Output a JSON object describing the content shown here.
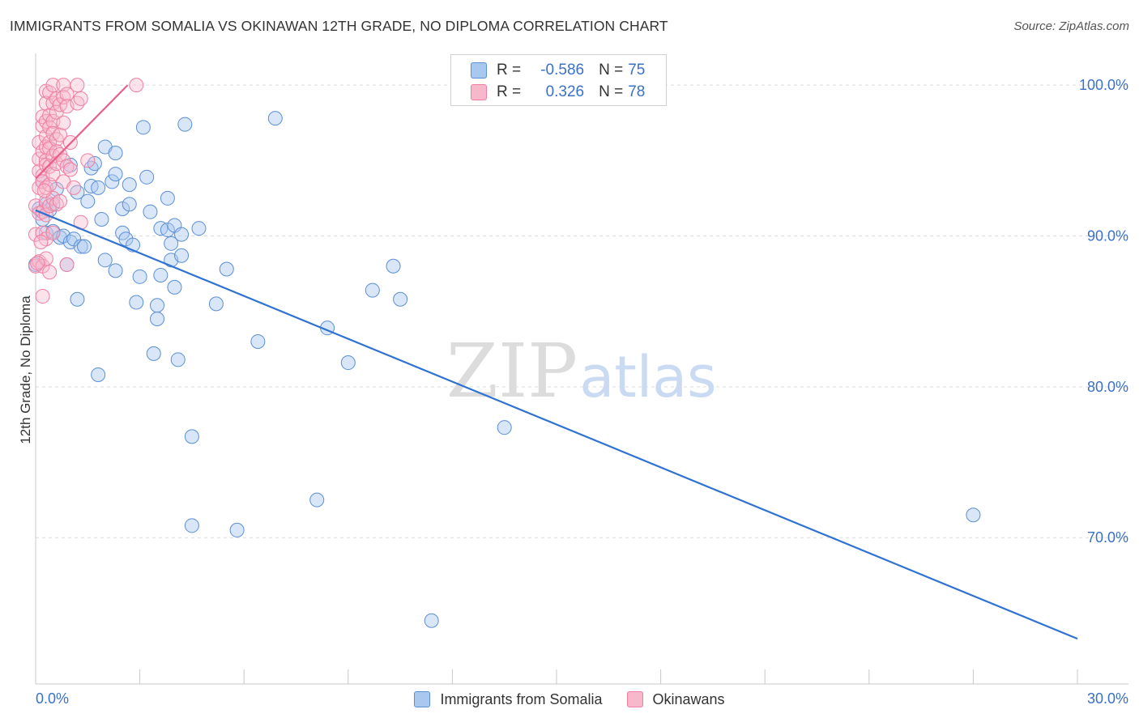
{
  "title": "IMMIGRANTS FROM SOMALIA VS OKINAWAN 12TH GRADE, NO DIPLOMA CORRELATION CHART",
  "source": "Source: ZipAtlas.com",
  "watermark": {
    "zip": "ZIP",
    "atlas": "atlas"
  },
  "legend_top": {
    "rows": [
      {
        "r_label": "R =",
        "r_value": "-0.586",
        "n_label": "N =",
        "n_value": "75"
      },
      {
        "r_label": "R =",
        "r_value": "0.326",
        "n_label": "N =",
        "n_value": "78"
      }
    ]
  },
  "legend_bottom": {
    "series1": "Immigrants from Somalia",
    "series2": "Okinawans"
  },
  "colors": {
    "blue_fill": "#a9c8ef",
    "blue_stroke": "#5b8fd6",
    "blue_line": "#2f72d2",
    "pink_fill": "#f7b8cc",
    "pink_stroke": "#ee7fa0",
    "pink_line": "#e8608a",
    "grid": "#dcdcdc",
    "tick_text": "#3a70c9"
  },
  "chart_data": {
    "type": "scatter",
    "title": "IMMIGRANTS FROM SOMALIA VS OKINAWAN 12TH GRADE, NO DIPLOMA CORRELATION CHART",
    "xlabel": "",
    "ylabel": "12th Grade, No Diploma",
    "xlim": [
      0,
      30
    ],
    "ylim": [
      60.3,
      102.1
    ],
    "x_tick_labels": [
      "0.0%",
      "30.0%"
    ],
    "y_ticks": [
      100,
      90,
      80,
      70
    ],
    "y_tick_labels": [
      "100.0%",
      "90.0%",
      "80.0%",
      "70.0%"
    ],
    "series": [
      {
        "name": "Immigrants from Somalia",
        "r": -0.586,
        "n": 75,
        "trend": {
          "x": [
            0,
            30
          ],
          "y": [
            91.7,
            63.3
          ]
        },
        "points": [
          [
            0.0,
            88.1
          ],
          [
            0.1,
            91.8
          ],
          [
            0.2,
            93.6
          ],
          [
            0.2,
            91.1
          ],
          [
            0.3,
            92.1
          ],
          [
            0.3,
            90.2
          ],
          [
            0.4,
            91.7
          ],
          [
            0.5,
            92.1
          ],
          [
            0.5,
            90.3
          ],
          [
            0.6,
            93.1
          ],
          [
            0.7,
            89.9
          ],
          [
            0.8,
            90.0
          ],
          [
            0.9,
            88.1
          ],
          [
            1.0,
            94.7
          ],
          [
            1.0,
            89.6
          ],
          [
            1.1,
            89.8
          ],
          [
            1.2,
            85.8
          ],
          [
            1.2,
            92.9
          ],
          [
            1.3,
            89.3
          ],
          [
            1.4,
            89.3
          ],
          [
            1.5,
            92.3
          ],
          [
            1.6,
            93.3
          ],
          [
            1.6,
            94.5
          ],
          [
            1.7,
            94.8
          ],
          [
            1.8,
            93.2
          ],
          [
            1.8,
            80.8
          ],
          [
            1.9,
            91.1
          ],
          [
            2.0,
            95.9
          ],
          [
            2.0,
            88.4
          ],
          [
            2.2,
            93.6
          ],
          [
            2.3,
            94.1
          ],
          [
            2.3,
            87.7
          ],
          [
            2.3,
            95.5
          ],
          [
            2.5,
            90.2
          ],
          [
            2.5,
            91.8
          ],
          [
            2.6,
            89.8
          ],
          [
            2.7,
            93.4
          ],
          [
            2.7,
            92.1
          ],
          [
            2.8,
            89.4
          ],
          [
            2.9,
            85.6
          ],
          [
            3.0,
            87.3
          ],
          [
            3.1,
            97.2
          ],
          [
            3.2,
            93.9
          ],
          [
            3.3,
            91.6
          ],
          [
            3.4,
            82.2
          ],
          [
            3.5,
            84.5
          ],
          [
            3.5,
            85.4
          ],
          [
            3.6,
            87.4
          ],
          [
            3.6,
            90.5
          ],
          [
            3.8,
            92.5
          ],
          [
            3.8,
            90.4
          ],
          [
            3.9,
            88.4
          ],
          [
            3.9,
            89.5
          ],
          [
            4.0,
            86.6
          ],
          [
            4.0,
            90.7
          ],
          [
            4.1,
            81.8
          ],
          [
            4.2,
            90.1
          ],
          [
            4.2,
            88.7
          ],
          [
            4.3,
            97.4
          ],
          [
            4.5,
            76.7
          ],
          [
            4.5,
            70.8
          ],
          [
            4.7,
            90.5
          ],
          [
            5.2,
            85.5
          ],
          [
            5.5,
            87.8
          ],
          [
            5.8,
            70.5
          ],
          [
            6.4,
            83.0
          ],
          [
            6.9,
            97.8
          ],
          [
            8.1,
            72.5
          ],
          [
            8.4,
            83.9
          ],
          [
            9.0,
            81.6
          ],
          [
            9.7,
            86.4
          ],
          [
            10.3,
            88.0
          ],
          [
            10.5,
            85.8
          ],
          [
            11.4,
            64.5
          ],
          [
            13.5,
            77.3
          ],
          [
            27.0,
            71.5
          ]
        ]
      },
      {
        "name": "Okinawans",
        "r": 0.326,
        "n": 78,
        "trend": {
          "x": [
            0,
            2.65
          ],
          "y": [
            93.8,
            100.0
          ]
        },
        "points": [
          [
            0.0,
            88.0
          ],
          [
            0.0,
            90.1
          ],
          [
            0.0,
            92.0
          ],
          [
            0.1,
            93.2
          ],
          [
            0.1,
            94.3
          ],
          [
            0.1,
            95.1
          ],
          [
            0.1,
            96.2
          ],
          [
            0.1,
            91.5
          ],
          [
            0.1,
            88.3
          ],
          [
            0.2,
            97.3
          ],
          [
            0.2,
            97.9
          ],
          [
            0.2,
            95.6
          ],
          [
            0.2,
            94.0
          ],
          [
            0.2,
            93.6
          ],
          [
            0.2,
            91.6
          ],
          [
            0.2,
            90.2
          ],
          [
            0.2,
            88.0
          ],
          [
            0.2,
            86.0
          ],
          [
            0.3,
            99.6
          ],
          [
            0.3,
            98.8
          ],
          [
            0.3,
            97.6
          ],
          [
            0.3,
            96.6
          ],
          [
            0.3,
            95.9
          ],
          [
            0.3,
            95.0
          ],
          [
            0.3,
            94.7
          ],
          [
            0.3,
            93.2
          ],
          [
            0.3,
            92.3
          ],
          [
            0.3,
            91.4
          ],
          [
            0.3,
            89.8
          ],
          [
            0.3,
            88.5
          ],
          [
            0.4,
            99.5
          ],
          [
            0.4,
            98.0
          ],
          [
            0.4,
            97.2
          ],
          [
            0.4,
            96.2
          ],
          [
            0.4,
            95.8
          ],
          [
            0.4,
            94.6
          ],
          [
            0.4,
            93.4
          ],
          [
            0.4,
            92.0
          ],
          [
            0.4,
            87.6
          ],
          [
            0.5,
            100.0
          ],
          [
            0.5,
            98.8
          ],
          [
            0.5,
            97.6
          ],
          [
            0.5,
            96.8
          ],
          [
            0.5,
            95.3
          ],
          [
            0.5,
            94.1
          ],
          [
            0.5,
            92.5
          ],
          [
            0.5,
            90.2
          ],
          [
            0.6,
            99.1
          ],
          [
            0.6,
            98.2
          ],
          [
            0.6,
            96.4
          ],
          [
            0.6,
            95.6
          ],
          [
            0.6,
            94.8
          ],
          [
            0.6,
            92.1
          ],
          [
            0.7,
            98.7
          ],
          [
            0.7,
            96.7
          ],
          [
            0.7,
            95.4
          ],
          [
            0.7,
            92.3
          ],
          [
            0.8,
            100.0
          ],
          [
            0.8,
            99.2
          ],
          [
            0.8,
            97.5
          ],
          [
            0.8,
            95.0
          ],
          [
            0.8,
            93.6
          ],
          [
            0.9,
            99.4
          ],
          [
            0.9,
            98.6
          ],
          [
            0.9,
            94.6
          ],
          [
            0.9,
            88.1
          ],
          [
            1.0,
            96.2
          ],
          [
            1.0,
            94.4
          ],
          [
            1.1,
            93.2
          ],
          [
            1.2,
            98.8
          ],
          [
            1.2,
            100.0
          ],
          [
            1.3,
            99.1
          ],
          [
            1.3,
            90.9
          ],
          [
            1.5,
            95.0
          ],
          [
            2.9,
            100.0
          ],
          [
            0.05,
            88.2
          ],
          [
            0.15,
            89.6
          ],
          [
            0.25,
            93.0
          ]
        ]
      }
    ]
  }
}
